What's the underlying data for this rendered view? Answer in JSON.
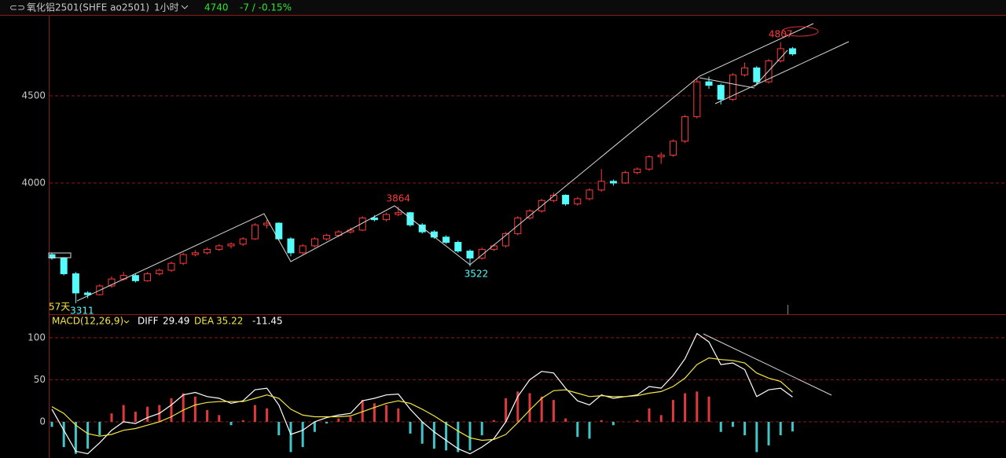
{
  "header": {
    "symbol": "氧化铝2501(SHFE ao2501)",
    "period": "1小时",
    "change": "-7 / -0.15%"
  },
  "chart_data": [
    {
      "type": "candlestick",
      "up_color": "#ff3b3b",
      "down_color": "#54fcfc",
      "grid": true,
      "ylim": [
        3248,
        4959
      ],
      "yticks": [
        4000,
        4500
      ],
      "note": "57天",
      "open": [
        3590,
        3570,
        3480,
        3370,
        3360,
        3410,
        3450,
        3470,
        3440,
        3480,
        3500,
        3540,
        3590,
        3600,
        3620,
        3640,
        3650,
        3680,
        3760,
        3770,
        3680,
        3600,
        3640,
        3680,
        3700,
        3720,
        3730,
        3800,
        3790,
        3820,
        3830,
        3760,
        3720,
        3690,
        3660,
        3610,
        3570,
        3620,
        3640,
        3710,
        3800,
        3840,
        3900,
        3930,
        3880,
        3910,
        3960,
        4010,
        4000,
        4060,
        4080,
        4150,
        4160,
        4240,
        4380,
        4580,
        4560,
        4480,
        4620,
        4660,
        4580,
        4700,
        4770
      ],
      "high": [
        3600,
        3575,
        3490,
        3380,
        3420,
        3465,
        3490,
        3480,
        3490,
        3510,
        3550,
        3600,
        3615,
        3630,
        3650,
        3660,
        3690,
        3770,
        3790,
        3775,
        3690,
        3650,
        3690,
        3710,
        3730,
        3745,
        3810,
        3815,
        3830,
        3864,
        3835,
        3770,
        3730,
        3700,
        3670,
        3620,
        3630,
        3650,
        3720,
        3810,
        3850,
        3910,
        3945,
        3935,
        3920,
        3970,
        4080,
        4020,
        4070,
        4090,
        4160,
        4175,
        4250,
        4390,
        4600,
        4610,
        4570,
        4630,
        4690,
        4670,
        4710,
        4807,
        4780
      ],
      "low": [
        3560,
        3470,
        3311,
        3340,
        3355,
        3400,
        3440,
        3430,
        3435,
        3470,
        3490,
        3530,
        3580,
        3590,
        3610,
        3625,
        3640,
        3675,
        3740,
        3670,
        3580,
        3590,
        3630,
        3670,
        3690,
        3710,
        3725,
        3780,
        3780,
        3810,
        3750,
        3710,
        3680,
        3650,
        3600,
        3522,
        3560,
        3610,
        3630,
        3700,
        3790,
        3830,
        3890,
        3870,
        3870,
        3900,
        3950,
        3985,
        3995,
        4050,
        4070,
        4110,
        4150,
        4230,
        4370,
        4540,
        4450,
        4470,
        4610,
        4560,
        4570,
        4690,
        4730
      ],
      "close": [
        3570,
        3480,
        3370,
        3360,
        3410,
        3450,
        3470,
        3440,
        3480,
        3500,
        3540,
        3590,
        3600,
        3620,
        3640,
        3650,
        3680,
        3760,
        3770,
        3680,
        3600,
        3640,
        3680,
        3700,
        3720,
        3730,
        3800,
        3790,
        3820,
        3830,
        3760,
        3720,
        3690,
        3660,
        3610,
        3570,
        3620,
        3640,
        3710,
        3800,
        3840,
        3900,
        3930,
        3880,
        3910,
        3960,
        4010,
        4000,
        4060,
        4080,
        4150,
        4160,
        4240,
        4380,
        4580,
        4560,
        4480,
        4620,
        4660,
        4580,
        4700,
        4770,
        4740
      ]
    },
    {
      "type": "macd",
      "title": "MACD(12,26,9)",
      "grid": true,
      "ylim": [
        -43,
        126
      ],
      "yticks": [
        0,
        50,
        100
      ],
      "series": [
        {
          "name": "DIFF",
          "color": "#ffffff",
          "values": [
            15,
            -10,
            -35,
            -38,
            -25,
            -10,
            0,
            -2,
            5,
            10,
            20,
            32,
            35,
            30,
            28,
            22,
            25,
            38,
            40,
            20,
            -15,
            -10,
            0,
            5,
            8,
            10,
            25,
            28,
            32,
            33,
            15,
            0,
            -12,
            -22,
            -32,
            -38,
            -30,
            -20,
            0,
            30,
            50,
            60,
            58,
            40,
            25,
            20,
            32,
            28,
            30,
            32,
            42,
            40,
            55,
            75,
            105,
            95,
            68,
            70,
            62,
            30,
            38,
            40,
            29.49
          ]
        },
        {
          "name": "DEA",
          "color": "#f5e642",
          "values": [
            18,
            10,
            -4,
            -14,
            -17,
            -15,
            -10,
            -8,
            -4,
            0,
            6,
            14,
            20,
            23,
            24,
            24,
            24,
            28,
            32,
            28,
            15,
            8,
            6,
            6,
            6,
            7,
            12,
            17,
            22,
            25,
            22,
            15,
            7,
            -2,
            -11,
            -19,
            -22,
            -21,
            -15,
            -1,
            14,
            28,
            37,
            38,
            34,
            30,
            31,
            30,
            30,
            31,
            34,
            36,
            42,
            52,
            68,
            76,
            74,
            73,
            70,
            58,
            52,
            48,
            35.22
          ]
        }
      ],
      "histogram": {
        "up_color": "#e0393c",
        "down_color": "#3fc6c9",
        "values": [
          -6,
          -30,
          -38,
          -32,
          -16,
          10,
          20,
          12,
          18,
          20,
          28,
          34,
          30,
          14,
          8,
          -4,
          2,
          20,
          16,
          -16,
          -36,
          -30,
          -12,
          -2,
          4,
          6,
          26,
          22,
          20,
          16,
          -14,
          -26,
          -32,
          -34,
          -36,
          -34,
          -16,
          2,
          28,
          36,
          34,
          30,
          26,
          4,
          -18,
          -20,
          2,
          -4,
          0,
          2,
          16,
          8,
          26,
          34,
          36,
          30,
          -12,
          -6,
          -16,
          -36,
          -28,
          -16,
          -11.45
        ]
      }
    }
  ]
}
